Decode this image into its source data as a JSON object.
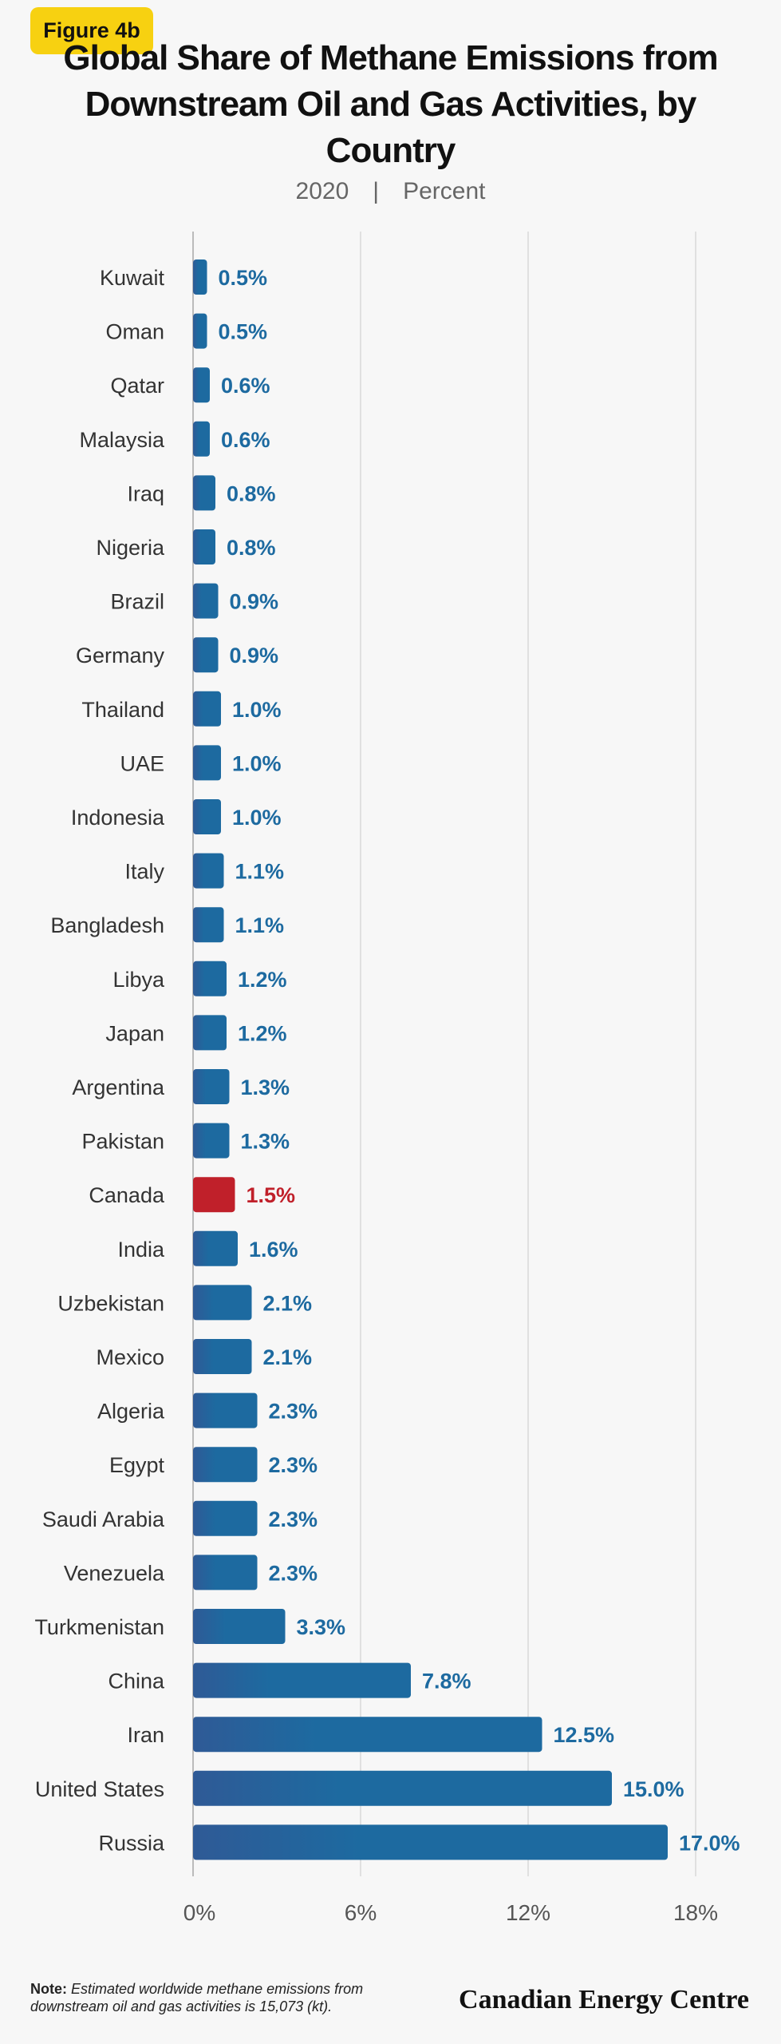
{
  "figure_label": "Figure 4b",
  "title": "Global Share of Methane Emissions from Downstream Oil and Gas Activities, by Country",
  "subtitle": {
    "year": "2020",
    "unit": "Percent"
  },
  "note": {
    "label": "Note:",
    "text": "Estimated worldwide methane emissions from downstream oil and gas activities is 15,073 (kt)."
  },
  "brand": "Canadian Energy Centre",
  "colors": {
    "bar": "#1d6aa0",
    "bar_dark": "#2f5a96",
    "highlight": "#c0202a",
    "label": "#1d6aa0",
    "highlight_label": "#c0202a",
    "grid": "#d8d8d8",
    "tick": "#555555"
  },
  "chart_data": {
    "type": "bar",
    "orientation": "horizontal",
    "categories": [
      "Kuwait",
      "Oman",
      "Qatar",
      "Malaysia",
      "Iraq",
      "Nigeria",
      "Brazil",
      "Germany",
      "Thailand",
      "UAE",
      "Indonesia",
      "Italy",
      "Bangladesh",
      "Libya",
      "Japan",
      "Argentina",
      "Pakistan",
      "Canada",
      "India",
      "Uzbekistan",
      "Mexico",
      "Algeria",
      "Egypt",
      "Saudi Arabia",
      "Venezuela",
      "Turkmenistan",
      "China",
      "Iran",
      "United States",
      "Russia"
    ],
    "values": [
      0.5,
      0.5,
      0.6,
      0.6,
      0.8,
      0.8,
      0.9,
      0.9,
      1.0,
      1.0,
      1.0,
      1.1,
      1.1,
      1.2,
      1.2,
      1.3,
      1.3,
      1.5,
      1.6,
      2.1,
      2.1,
      2.3,
      2.3,
      2.3,
      2.3,
      3.3,
      7.8,
      12.5,
      15.0,
      17.0
    ],
    "labels": [
      "0.5%",
      "0.5%",
      "0.6%",
      "0.6%",
      "0.8%",
      "0.8%",
      "0.9%",
      "0.9%",
      "1.0%",
      "1.0%",
      "1.0%",
      "1.1%",
      "1.1%",
      "1.2%",
      "1.2%",
      "1.3%",
      "1.3%",
      "1.5%",
      "1.6%",
      "2.1%",
      "2.1%",
      "2.3%",
      "2.3%",
      "2.3%",
      "2.3%",
      "3.3%",
      "7.8%",
      "12.5%",
      "15.0%",
      "17.0%"
    ],
    "highlight": "Canada",
    "xlim": [
      0,
      18
    ],
    "xticks": [
      0,
      6,
      12,
      18
    ],
    "xtick_labels": [
      "0%",
      "6%",
      "12%",
      "18%"
    ],
    "grid": true
  }
}
